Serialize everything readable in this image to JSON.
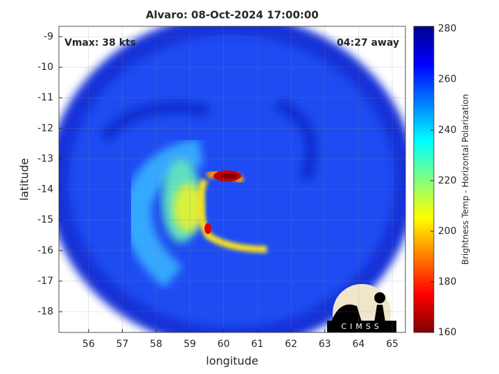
{
  "chart_data": {
    "type": "image",
    "title": "Alvaro: 08-Oct-2024 17:00:00",
    "xlabel": "longitude",
    "ylabel": "latitude",
    "annotations": [
      "Vmax: 38 kts",
      "04:27 away"
    ],
    "xlim": [
      55.12,
      65.39
    ],
    "xticks": [
      56,
      57,
      58,
      59,
      60,
      61,
      62,
      63,
      64,
      65
    ],
    "ylim": [
      -18.68,
      -8.66
    ],
    "yticks": [
      -9,
      -10,
      -11,
      -12,
      -13,
      -14,
      -15,
      -16,
      -17,
      -18
    ],
    "grid": true,
    "colorbar": {
      "label": "Brightness Temp - Horizontal Polarization",
      "colormap": "jet_reversed",
      "lim": [
        160,
        281
      ],
      "ticks": [
        160,
        180,
        200,
        220,
        240,
        260,
        280
      ]
    },
    "logo_text": "CIMSS"
  }
}
